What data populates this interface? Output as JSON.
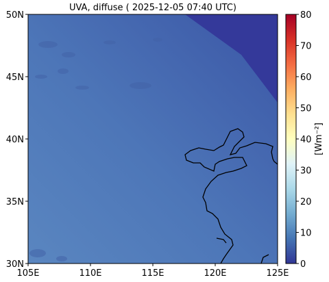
{
  "title": "UVA, diffuse ( 2025-12-05 07:40 UTC)",
  "map": {
    "lon_range": [
      105,
      125
    ],
    "lat_range": [
      30,
      50
    ],
    "x_ticks": [
      {
        "value": 105,
        "label": "105E"
      },
      {
        "value": 110,
        "label": "110E"
      },
      {
        "value": 115,
        "label": "115E"
      },
      {
        "value": 120,
        "label": "120E"
      },
      {
        "value": 125,
        "label": "125E"
      }
    ],
    "y_ticks": [
      {
        "value": 30,
        "label": "30N"
      },
      {
        "value": 35,
        "label": "35N"
      },
      {
        "value": 40,
        "label": "40N"
      },
      {
        "value": 45,
        "label": "45N"
      },
      {
        "value": 50,
        "label": "50N"
      }
    ],
    "field_colors": {
      "west": "#5a86c0",
      "mid": "#4d76b8",
      "east": "#3b56a6",
      "night": "#34399a"
    }
  },
  "colorbar": {
    "range": [
      0,
      80
    ],
    "ticks": [
      {
        "value": 0,
        "label": "0"
      },
      {
        "value": 10,
        "label": "10"
      },
      {
        "value": 20,
        "label": "20"
      },
      {
        "value": 30,
        "label": "30"
      },
      {
        "value": 40,
        "label": "40"
      },
      {
        "value": 50,
        "label": "50"
      },
      {
        "value": 60,
        "label": "60"
      },
      {
        "value": 70,
        "label": "70"
      },
      {
        "value": 80,
        "label": "80"
      }
    ],
    "label": "[Wm⁻²]",
    "colormap": [
      "#313695",
      "#4575b4",
      "#74add1",
      "#abd9e9",
      "#e0f3f8",
      "#ffffbf",
      "#fee090",
      "#fdae61",
      "#f46d43",
      "#d73027",
      "#a50026"
    ]
  }
}
